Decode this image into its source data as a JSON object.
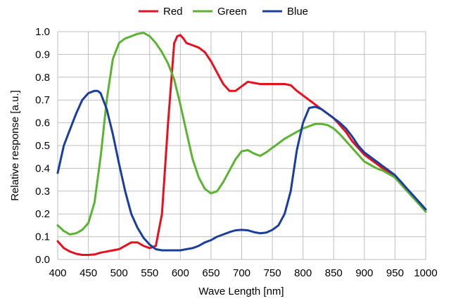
{
  "chart_data": {
    "type": "line",
    "xlabel": "Wave Length [nm]",
    "ylabel": "Relative response [a.u.]",
    "xlim": [
      400,
      1000
    ],
    "ylim": [
      0.0,
      1.0
    ],
    "xticks": [
      "400",
      "450",
      "500",
      "550",
      "600",
      "650",
      "700",
      "750",
      "800",
      "850",
      "900",
      "950",
      "1000"
    ],
    "yticks": [
      "0.0",
      "0.1",
      "0.2",
      "0.3",
      "0.4",
      "0.5",
      "0.6",
      "0.7",
      "0.8",
      "0.9",
      "1.0"
    ],
    "grid": true,
    "legend_position": "top",
    "series": [
      {
        "name": "Red",
        "color": "#e8101d",
        "x": [
          400,
          410,
          420,
          430,
          440,
          450,
          460,
          470,
          480,
          490,
          500,
          510,
          520,
          530,
          540,
          550,
          560,
          570,
          580,
          590,
          595,
          600,
          605,
          610,
          620,
          630,
          640,
          650,
          660,
          670,
          680,
          690,
          700,
          710,
          720,
          730,
          740,
          750,
          760,
          770,
          780,
          790,
          800,
          810,
          820,
          830,
          840,
          850,
          860,
          870,
          880,
          890,
          900,
          910,
          920,
          930,
          940,
          950,
          960,
          970,
          980,
          990,
          1000
        ],
        "y": [
          0.08,
          0.05,
          0.035,
          0.025,
          0.02,
          0.02,
          0.022,
          0.03,
          0.035,
          0.04,
          0.045,
          0.06,
          0.075,
          0.075,
          0.06,
          0.05,
          0.06,
          0.2,
          0.6,
          0.95,
          0.98,
          0.985,
          0.97,
          0.95,
          0.94,
          0.93,
          0.91,
          0.87,
          0.82,
          0.77,
          0.74,
          0.74,
          0.76,
          0.78,
          0.775,
          0.77,
          0.77,
          0.77,
          0.77,
          0.77,
          0.765,
          0.74,
          0.72,
          0.7,
          0.68,
          0.66,
          0.64,
          0.62,
          0.59,
          0.56,
          0.52,
          0.49,
          0.46,
          0.44,
          0.42,
          0.4,
          0.38,
          0.36,
          0.33,
          0.3,
          0.27,
          0.25,
          0.22
        ]
      },
      {
        "name": "Green",
        "color": "#5bb431",
        "x": [
          400,
          410,
          420,
          430,
          440,
          450,
          460,
          470,
          480,
          490,
          500,
          510,
          520,
          530,
          540,
          550,
          560,
          570,
          580,
          590,
          600,
          610,
          620,
          630,
          640,
          650,
          660,
          670,
          680,
          690,
          700,
          710,
          720,
          730,
          740,
          750,
          760,
          770,
          780,
          790,
          800,
          810,
          820,
          830,
          840,
          850,
          860,
          870,
          880,
          890,
          900,
          910,
          920,
          930,
          940,
          950,
          960,
          970,
          980,
          990,
          1000
        ],
        "y": [
          0.15,
          0.125,
          0.11,
          0.115,
          0.13,
          0.16,
          0.25,
          0.45,
          0.7,
          0.88,
          0.95,
          0.97,
          0.98,
          0.99,
          0.995,
          0.98,
          0.95,
          0.91,
          0.86,
          0.79,
          0.68,
          0.56,
          0.44,
          0.36,
          0.31,
          0.29,
          0.3,
          0.34,
          0.39,
          0.44,
          0.475,
          0.48,
          0.465,
          0.455,
          0.47,
          0.49,
          0.51,
          0.53,
          0.545,
          0.56,
          0.575,
          0.585,
          0.595,
          0.595,
          0.59,
          0.575,
          0.55,
          0.52,
          0.49,
          0.46,
          0.43,
          0.415,
          0.4,
          0.39,
          0.375,
          0.36,
          0.33,
          0.3,
          0.27,
          0.24,
          0.21
        ]
      },
      {
        "name": "Blue",
        "color": "#1a3e9c",
        "x": [
          400,
          410,
          420,
          430,
          440,
          450,
          460,
          465,
          470,
          480,
          490,
          500,
          510,
          520,
          530,
          540,
          550,
          560,
          570,
          580,
          590,
          600,
          610,
          620,
          630,
          640,
          650,
          660,
          670,
          680,
          690,
          700,
          710,
          720,
          730,
          740,
          750,
          760,
          770,
          780,
          790,
          800,
          810,
          820,
          830,
          840,
          850,
          860,
          870,
          880,
          890,
          900,
          910,
          920,
          930,
          940,
          950,
          960,
          970,
          980,
          990,
          1000
        ],
        "y": [
          0.38,
          0.5,
          0.57,
          0.64,
          0.7,
          0.73,
          0.74,
          0.74,
          0.73,
          0.66,
          0.55,
          0.42,
          0.3,
          0.2,
          0.14,
          0.095,
          0.065,
          0.045,
          0.04,
          0.04,
          0.04,
          0.04,
          0.045,
          0.05,
          0.06,
          0.075,
          0.085,
          0.1,
          0.11,
          0.12,
          0.128,
          0.13,
          0.128,
          0.12,
          0.115,
          0.118,
          0.13,
          0.15,
          0.2,
          0.3,
          0.48,
          0.6,
          0.665,
          0.67,
          0.66,
          0.64,
          0.62,
          0.6,
          0.575,
          0.54,
          0.5,
          0.47,
          0.45,
          0.43,
          0.41,
          0.39,
          0.37,
          0.34,
          0.31,
          0.28,
          0.25,
          0.22
        ]
      }
    ]
  }
}
